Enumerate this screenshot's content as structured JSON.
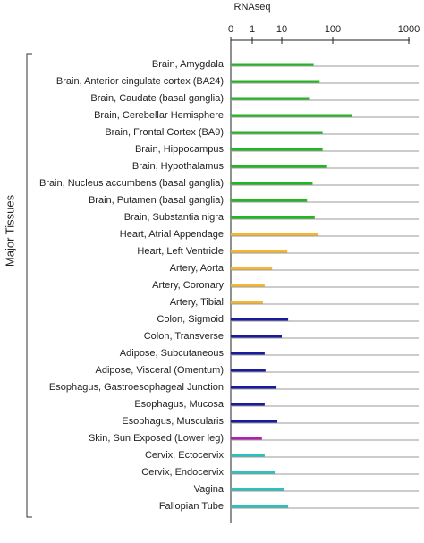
{
  "chart_data": {
    "type": "bar",
    "orientation": "horizontal",
    "title": "RNAseq",
    "group_label": "Major Tissues",
    "categories": [
      "Brain, Amygdala",
      "Brain, Anterior cingulate cortex (BA24)",
      "Brain, Caudate (basal ganglia)",
      "Brain, Cerebellar Hemisphere",
      "Brain, Frontal Cortex (BA9)",
      "Brain, Hippocampus",
      "Brain, Hypothalamus",
      "Brain, Nucleus accumbens (basal ganglia)",
      "Brain, Putamen (basal ganglia)",
      "Brain, Substantia nigra",
      "Heart, Atrial Appendage",
      "Heart, Left Ventricle",
      "Artery, Aorta",
      "Artery, Coronary",
      "Artery, Tibial",
      "Colon, Sigmoid",
      "Colon, Transverse",
      "Adipose, Subcutaneous",
      "Adipose, Visceral (Omentum)",
      "Esophagus, Gastroesophageal Junction",
      "Esophagus, Mucosa",
      "Esophagus, Muscularis",
      "Skin, Sun Exposed (Lower leg)",
      "Cervix, Ectocervix",
      "Cervix, Endocervix",
      "Vagina",
      "Fallopian Tube"
    ],
    "values": [
      43,
      56,
      35,
      182,
      64,
      64,
      78,
      41,
      32,
      45,
      52,
      13,
      5.3,
      3.1,
      2.7,
      13.5,
      10,
      3.1,
      3.3,
      7.1,
      3.1,
      7.5,
      2.5,
      3.1,
      6.3,
      11,
      13.5
    ],
    "colors": [
      "#22b722",
      "#22b722",
      "#22b722",
      "#22b722",
      "#22b722",
      "#22b722",
      "#22b722",
      "#22b722",
      "#22b722",
      "#22b722",
      "#f5b731",
      "#f5b731",
      "#f5b731",
      "#f5b731",
      "#f5b731",
      "#1a1a9c",
      "#1a1a9c",
      "#1a1a9c",
      "#1a1a9c",
      "#1a1a9c",
      "#1a1a9c",
      "#1a1a9c",
      "#b020b0",
      "#2ebfbf",
      "#2ebfbf",
      "#2ebfbf",
      "#2ebfbf"
    ],
    "xlim": [
      0,
      1000
    ],
    "xticks": [
      0,
      1,
      10,
      100,
      1000
    ],
    "xscale": "log"
  }
}
